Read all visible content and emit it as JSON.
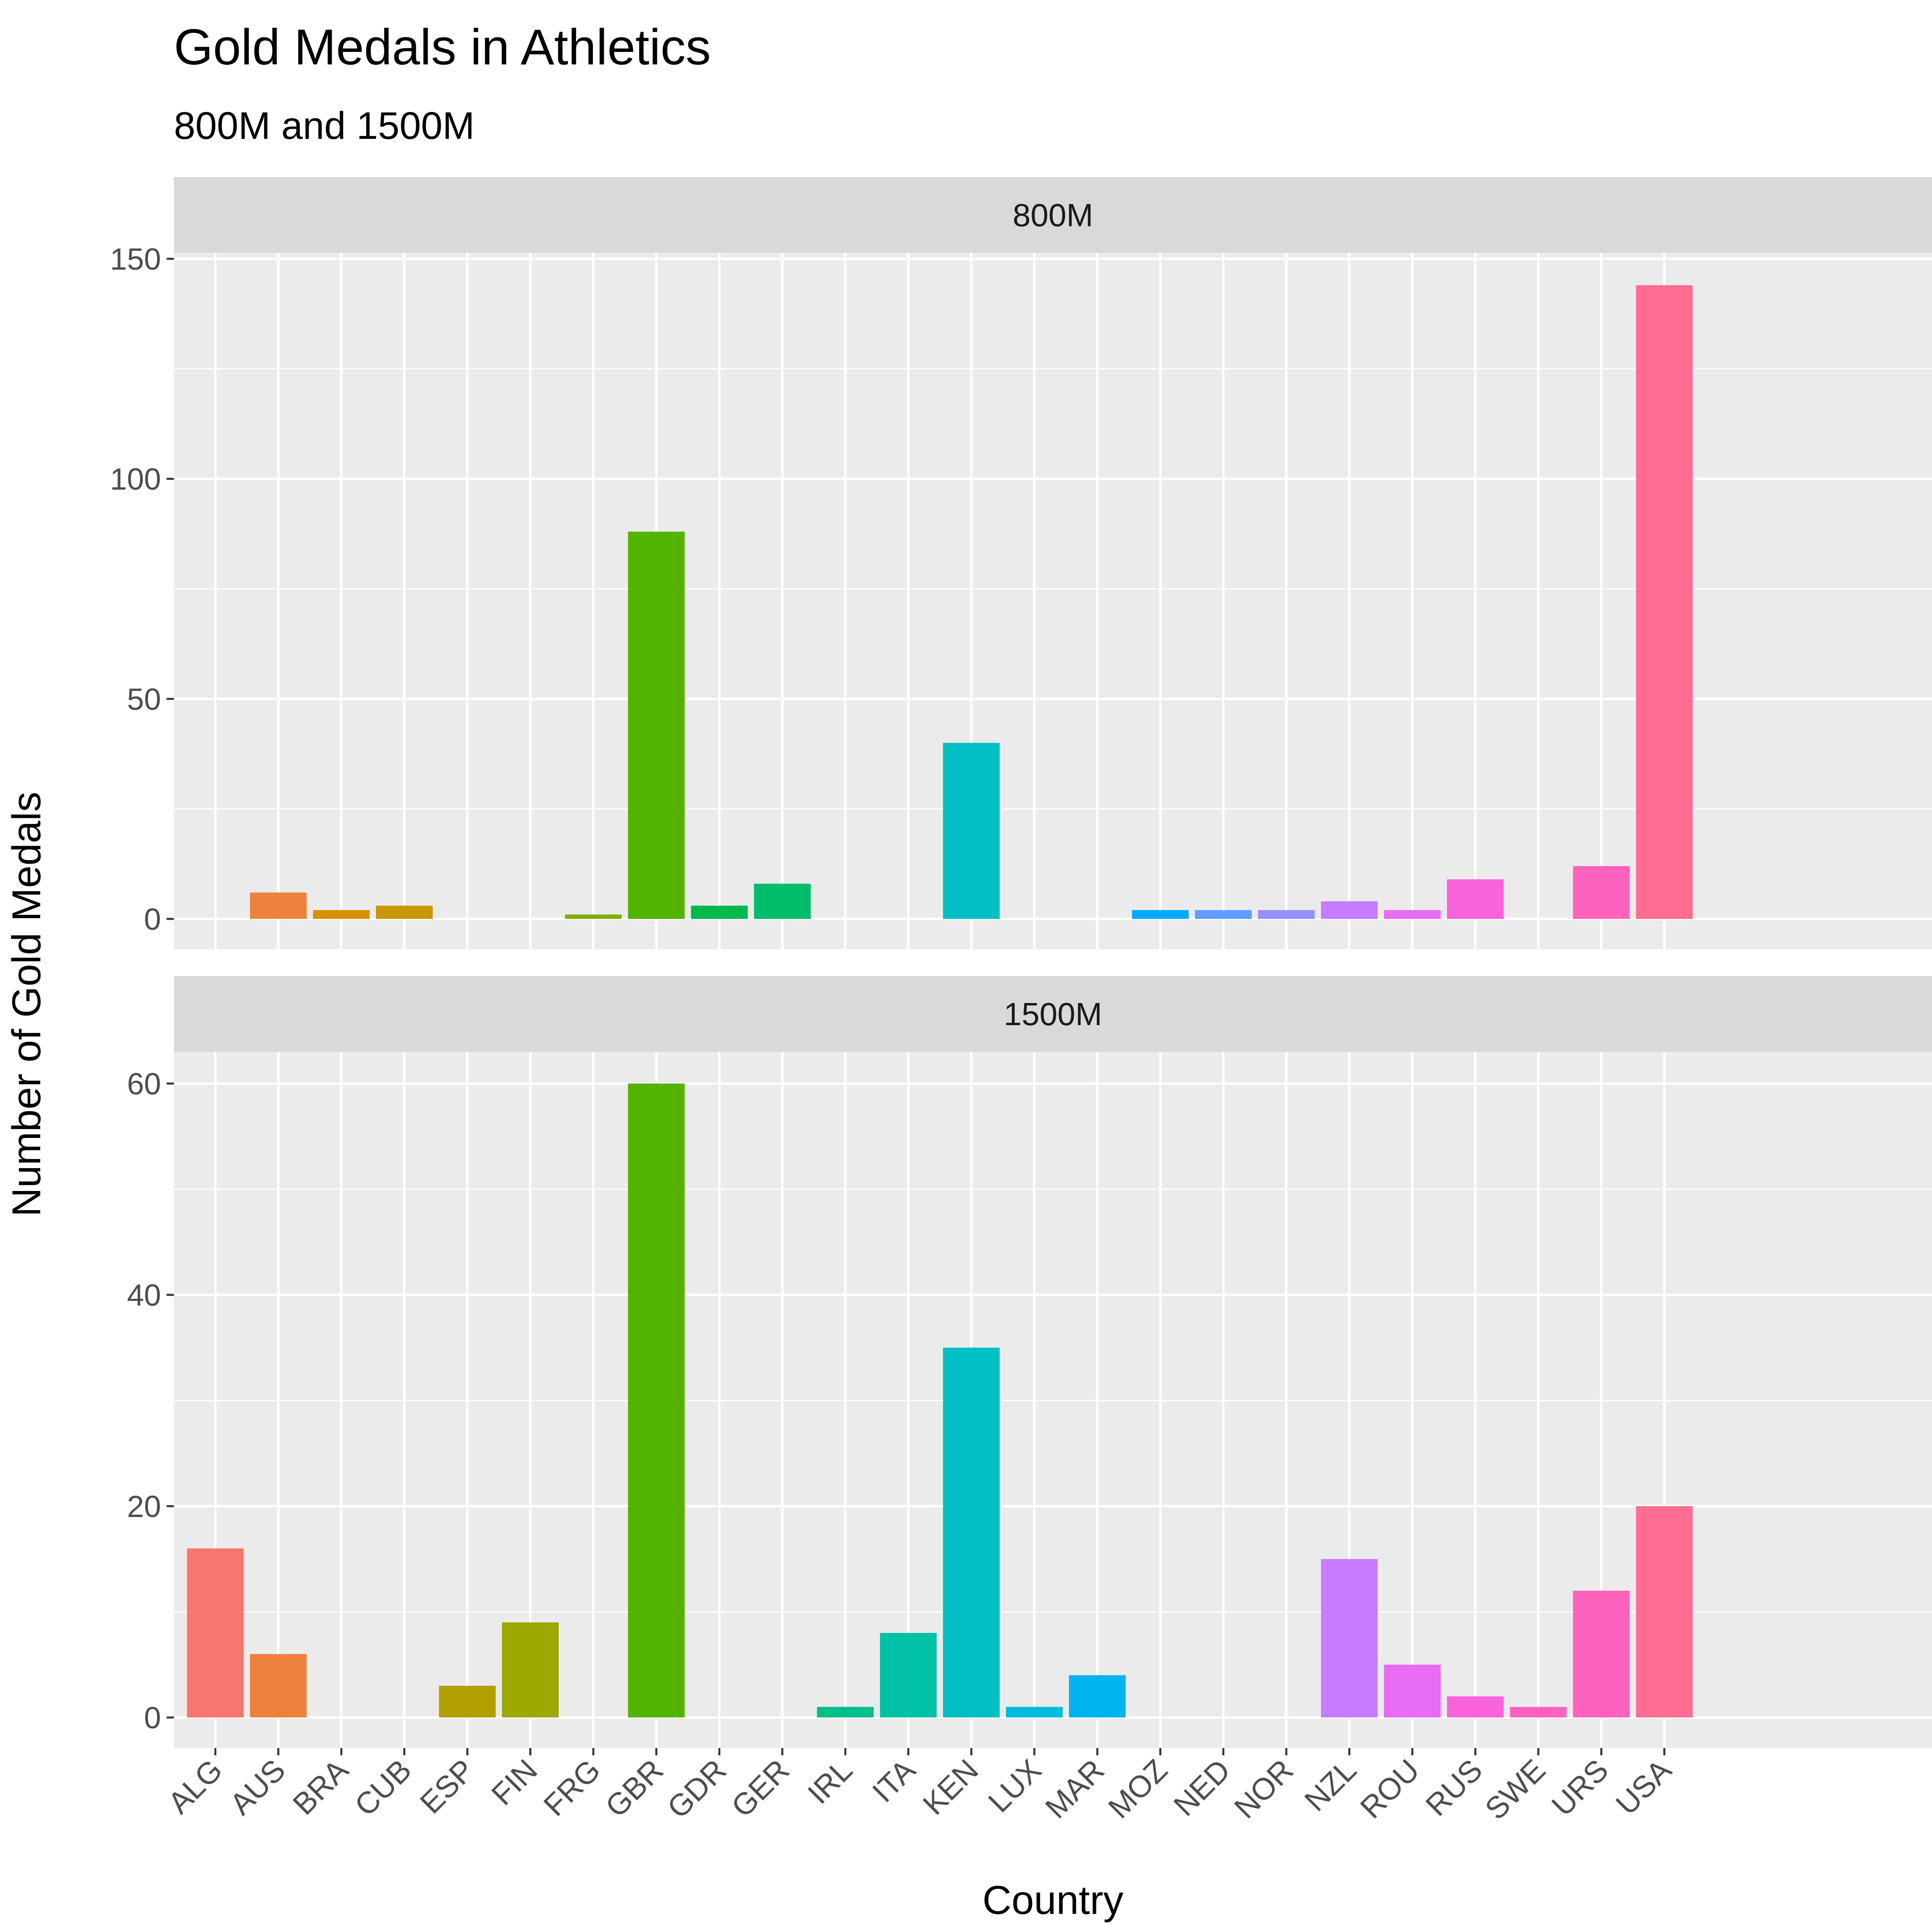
{
  "chart_data": {
    "type": "bar",
    "title": "Gold Medals in Athletics",
    "subtitle": "800M and 1500M",
    "xlabel": "Country",
    "ylabel": "Number of Gold Medals",
    "categories": [
      "ALG",
      "AUS",
      "BRA",
      "CUB",
      "ESP",
      "FIN",
      "FRG",
      "GBR",
      "GDR",
      "GER",
      "IRL",
      "ITA",
      "KEN",
      "LUX",
      "MAR",
      "MOZ",
      "NED",
      "NOR",
      "NZL",
      "ROU",
      "RUS",
      "SWE",
      "URS",
      "USA"
    ],
    "colors": [
      "#F8766D",
      "#EC823C",
      "#DB8E00",
      "#C79800",
      "#B2A000",
      "#9CA700",
      "#7FAE00",
      "#53B400",
      "#00B94A",
      "#00BD6B",
      "#00BF89",
      "#00C1A5",
      "#00BFC4",
      "#00BBDB",
      "#00B4EF",
      "#00A9FF",
      "#619CFF",
      "#9590FF",
      "#C77CFF",
      "#E76BF3",
      "#FA62DB",
      "#FF61C3",
      "#FF62BC",
      "#FF6C91"
    ],
    "grid": true,
    "legend": "none",
    "panels": [
      {
        "label": "800M",
        "ylim": [
          0,
          150
        ],
        "yticks": [
          0,
          50,
          100,
          150
        ],
        "values": [
          0,
          6,
          2,
          3,
          0,
          0,
          1,
          88,
          3,
          8,
          0,
          0,
          40,
          0,
          0,
          2,
          2,
          2,
          4,
          2,
          9,
          0,
          12,
          144
        ]
      },
      {
        "label": "1500M",
        "ylim": [
          0,
          60
        ],
        "yticks": [
          0,
          20,
          40,
          60
        ],
        "values": [
          16,
          6,
          0,
          0,
          3,
          9,
          0,
          60,
          0,
          0,
          1,
          8,
          35,
          1,
          4,
          0,
          0,
          0,
          15,
          5,
          2,
          1,
          12,
          20
        ]
      }
    ]
  }
}
